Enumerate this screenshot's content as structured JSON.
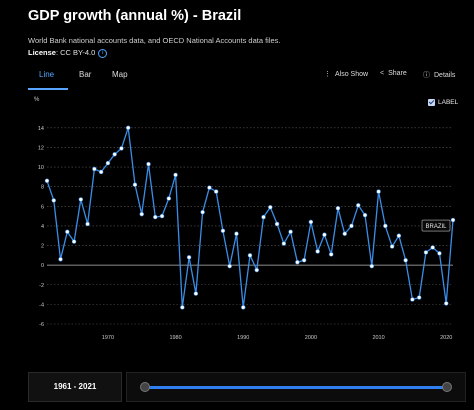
{
  "header": {
    "title": "GDP growth (annual %) - Brazil",
    "source": "World Bank national accounts data, and OECD National Accounts data files.",
    "license_label": "License",
    "license_value": ": CC BY-4.0"
  },
  "tabs": [
    {
      "label": "Line",
      "active": true
    },
    {
      "label": "Bar",
      "active": false
    },
    {
      "label": "Map",
      "active": false
    }
  ],
  "actions": {
    "also_show": "Also Show",
    "share": "Share",
    "details": "Details"
  },
  "label_toggle": {
    "text": "LABEL",
    "checked": true
  },
  "range": {
    "label": "1961 - 2021",
    "start": 1961,
    "end": 2021
  },
  "colors": {
    "accent": "#58a6ff",
    "line": "#3a8ee8",
    "background": "#000000"
  },
  "chart_data": {
    "type": "line",
    "y_unit": "%",
    "y_ticks": [
      "14",
      "12",
      "10",
      "8",
      "6",
      "4",
      "2",
      "0",
      "-2",
      "-4",
      "-6"
    ],
    "x_ticks": [
      "1970",
      "1980",
      "1990",
      "2000",
      "2010",
      "2020"
    ],
    "xlim": [
      1961,
      2021
    ],
    "ylim": [
      -6,
      15
    ],
    "grid": "horizontal dotted",
    "series": [
      {
        "name": "BRAZIL",
        "x": [
          1961,
          1962,
          1963,
          1964,
          1965,
          1966,
          1967,
          1968,
          1969,
          1970,
          1971,
          1972,
          1973,
          1974,
          1975,
          1976,
          1977,
          1978,
          1979,
          1980,
          1981,
          1982,
          1983,
          1984,
          1985,
          1986,
          1987,
          1988,
          1989,
          1990,
          1991,
          1992,
          1993,
          1994,
          1995,
          1996,
          1997,
          1998,
          1999,
          2000,
          2001,
          2002,
          2003,
          2004,
          2005,
          2006,
          2007,
          2008,
          2009,
          2010,
          2011,
          2012,
          2013,
          2014,
          2015,
          2016,
          2017,
          2018,
          2019,
          2020,
          2021
        ],
        "values": [
          8.6,
          6.6,
          0.6,
          3.4,
          2.4,
          6.7,
          4.2,
          9.8,
          9.5,
          10.4,
          11.3,
          11.9,
          14.0,
          8.2,
          5.2,
          10.3,
          4.9,
          5.0,
          6.8,
          9.2,
          -4.3,
          0.8,
          -2.9,
          5.4,
          7.9,
          7.5,
          3.5,
          -0.1,
          3.2,
          -4.3,
          1.0,
          -0.5,
          4.9,
          5.9,
          4.2,
          2.2,
          3.4,
          0.3,
          0.5,
          4.4,
          1.4,
          3.1,
          1.1,
          5.8,
          3.2,
          4.0,
          6.1,
          5.1,
          -0.1,
          7.5,
          4.0,
          1.9,
          3.0,
          0.5,
          -3.5,
          -3.3,
          1.3,
          1.8,
          1.2,
          -3.9,
          4.6
        ]
      }
    ]
  }
}
